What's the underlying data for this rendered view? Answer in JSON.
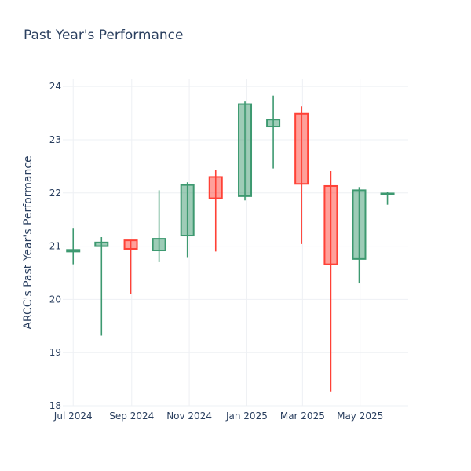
{
  "chart_data": {
    "type": "candlestick",
    "title": "Past Year's Performance",
    "xlabel": "",
    "ylabel": "ARCC's Past Year's Performance",
    "ylim": [
      18,
      24.15
    ],
    "yticks": [
      18,
      19,
      20,
      21,
      22,
      23,
      24
    ],
    "xticks": [
      {
        "label": "Jul 2024",
        "at": "2024-07-01"
      },
      {
        "label": "Sep 2024",
        "at": "2024-09-01"
      },
      {
        "label": "Nov 2024",
        "at": "2024-11-01"
      },
      {
        "label": "Jan 2025",
        "at": "2025-01-01"
      },
      {
        "label": "Mar 2025",
        "at": "2025-03-01"
      },
      {
        "label": "May 2025",
        "at": "2025-05-01"
      }
    ],
    "xlim": [
      "2024-06-20",
      "2025-06-21"
    ],
    "grid": true,
    "legend": false,
    "colors": {
      "increasing": "#3d9970",
      "decreasing": "#ff4136"
    },
    "candles": [
      {
        "date": "2024-07-01",
        "open": 20.9,
        "high": 21.33,
        "low": 20.66,
        "close": 20.93
      },
      {
        "date": "2024-07-31",
        "open": 21.0,
        "high": 21.17,
        "low": 19.32,
        "close": 21.07
      },
      {
        "date": "2024-08-31",
        "open": 21.11,
        "high": 21.12,
        "low": 20.1,
        "close": 20.95
      },
      {
        "date": "2024-09-30",
        "open": 20.92,
        "high": 22.05,
        "low": 20.7,
        "close": 21.14
      },
      {
        "date": "2024-10-30",
        "open": 21.2,
        "high": 22.2,
        "low": 20.78,
        "close": 22.15
      },
      {
        "date": "2024-11-29",
        "open": 22.3,
        "high": 22.43,
        "low": 20.9,
        "close": 21.9
      },
      {
        "date": "2024-12-30",
        "open": 21.94,
        "high": 23.72,
        "low": 21.86,
        "close": 23.67
      },
      {
        "date": "2025-01-29",
        "open": 23.25,
        "high": 23.83,
        "low": 22.46,
        "close": 23.38
      },
      {
        "date": "2025-02-28",
        "open": 23.49,
        "high": 23.63,
        "low": 21.04,
        "close": 22.17
      },
      {
        "date": "2025-03-31",
        "open": 22.13,
        "high": 22.41,
        "low": 18.27,
        "close": 20.66
      },
      {
        "date": "2025-04-30",
        "open": 20.76,
        "high": 22.11,
        "low": 20.3,
        "close": 22.05
      },
      {
        "date": "2025-05-30",
        "open": 21.97,
        "high": 22.02,
        "low": 21.78,
        "close": 21.99
      }
    ]
  }
}
